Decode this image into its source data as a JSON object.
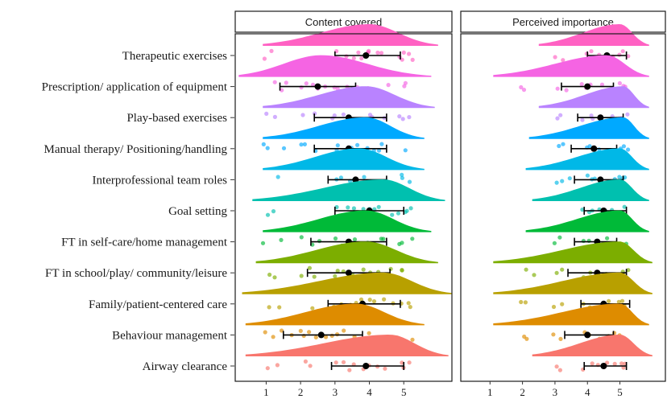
{
  "chart_data": {
    "type": "raincloud",
    "title": "",
    "xlabel": "",
    "ylabel": "",
    "xlim": [
      0.1,
      6.4
    ],
    "x_ticks": [
      1,
      2,
      3,
      4,
      5
    ],
    "grid": false,
    "legend": "none",
    "panels": [
      {
        "name": "Content covered"
      },
      {
        "name": "Perceived importance"
      }
    ],
    "categories": [
      "Therapeutic exercises",
      "Prescription/ application of equipment",
      "Play-based exercises",
      "Manual therapy/ Positioning/handling",
      "Interprofessional team roles",
      "Goal setting",
      "FT in self-care/home management",
      "FT in school/play/ community/leisure",
      "Family/patient-centered care",
      "Behaviour management",
      "Airway clearance"
    ],
    "colors": [
      "#ff61c3",
      "#f564e3",
      "#b983ff",
      "#00a9ff",
      "#00b8e7",
      "#00c0af",
      "#00ba38",
      "#7cae00",
      "#b8a000",
      "#de8c00",
      "#f8766d"
    ],
    "series": [
      {
        "name": "Content covered",
        "mean": [
          3.9,
          2.5,
          3.4,
          3.4,
          3.6,
          4.0,
          3.4,
          3.4,
          3.8,
          2.6,
          3.9
        ],
        "error_low": [
          3.0,
          1.4,
          2.4,
          2.4,
          2.8,
          3.0,
          2.3,
          2.2,
          2.8,
          1.5,
          2.9
        ],
        "error_high": [
          4.9,
          3.6,
          4.5,
          4.5,
          4.5,
          5.0,
          4.5,
          4.6,
          4.9,
          3.8,
          5.0
        ],
        "density_range": [
          [
            0.9,
            6.0
          ],
          [
            0.2,
            5.8
          ],
          [
            0.9,
            5.9
          ],
          [
            0.9,
            5.6
          ],
          [
            0.9,
            5.6
          ],
          [
            0.6,
            6.2
          ],
          [
            0.9,
            5.8
          ],
          [
            0.7,
            6.0
          ],
          [
            0.3,
            6.4
          ],
          [
            0.4,
            5.6
          ],
          [
            0.4,
            6.3
          ]
        ],
        "density_peak": [
          4.0,
          2.6,
          3.9,
          3.9,
          3.7,
          4.4,
          3.9,
          3.9,
          4.4,
          3.6,
          4.6
        ],
        "points": [
          [
            1.0,
            1.1,
            3.1,
            3.3,
            3.5,
            3.7,
            3.8,
            3.9,
            4.0,
            4.0,
            4.2,
            4.3,
            4.9,
            4.9,
            5.0,
            5.1,
            5.2
          ],
          [
            1.2,
            1.4,
            1.6,
            2.0,
            2.2,
            2.3,
            2.5,
            2.7,
            3.0,
            3.1,
            3.4,
            3.7,
            4.0,
            4.5,
            5.0,
            5.1
          ],
          [
            1.0,
            1.3,
            2.1,
            2.4,
            2.9,
            3.0,
            3.2,
            3.4,
            3.6,
            3.8,
            4.0,
            4.1,
            4.4,
            4.9,
            5.0,
            5.2
          ],
          [
            0.9,
            1.1,
            1.5,
            2.0,
            2.1,
            2.4,
            3.0,
            3.1,
            3.3,
            3.5,
            3.7,
            3.8,
            4.0,
            4.1,
            4.3,
            4.4,
            5.0
          ],
          [
            1.3,
            3.0,
            3.2,
            3.4,
            3.5,
            3.6,
            3.8,
            4.0,
            4.1,
            4.3,
            4.9,
            5.0,
            5.2
          ],
          [
            1.1,
            1.2,
            3.1,
            3.4,
            3.6,
            3.8,
            4.0,
            4.1,
            4.3,
            4.6,
            4.9,
            5.0,
            5.1,
            5.2
          ],
          [
            0.9,
            1.4,
            2.0,
            2.3,
            2.5,
            3.0,
            3.2,
            3.4,
            3.6,
            3.9,
            4.1,
            4.3,
            4.4,
            4.9,
            5.0,
            5.2
          ],
          [
            1.1,
            1.3,
            2.0,
            2.3,
            2.4,
            3.0,
            3.1,
            3.3,
            3.5,
            3.8,
            4.0,
            4.3,
            4.6,
            4.9,
            5.0
          ],
          [
            1.1,
            1.4,
            2.4,
            3.0,
            3.2,
            3.4,
            3.6,
            3.8,
            4.0,
            4.2,
            4.4,
            4.7,
            4.9,
            5.1,
            5.2
          ],
          [
            1.0,
            1.2,
            1.5,
            1.7,
            2.0,
            2.1,
            2.3,
            2.5,
            2.7,
            2.9,
            3.1,
            3.3,
            3.6,
            3.9,
            4.0,
            4.5,
            5.2
          ],
          [
            1.1,
            1.3,
            2.1,
            2.3,
            3.0,
            3.2,
            3.4,
            3.6,
            3.8,
            4.0,
            4.2,
            4.4,
            4.9,
            5.0,
            5.2
          ]
        ]
      },
      {
        "name": "Perceived importance",
        "mean": [
          4.6,
          4.0,
          4.4,
          4.2,
          4.4,
          4.5,
          4.3,
          4.3,
          4.5,
          4.0,
          4.5
        ],
        "error_low": [
          4.0,
          3.2,
          3.7,
          3.5,
          3.6,
          3.9,
          3.6,
          3.4,
          3.8,
          3.3,
          3.9
        ],
        "error_high": [
          5.2,
          4.8,
          5.1,
          4.9,
          5.1,
          5.2,
          4.9,
          5.2,
          5.3,
          4.8,
          5.2
        ],
        "density_range": [
          [
            2.5,
            5.9
          ],
          [
            1.1,
            5.9
          ],
          [
            2.5,
            5.9
          ],
          [
            2.2,
            5.9
          ],
          [
            2.1,
            5.9
          ],
          [
            2.3,
            5.9
          ],
          [
            2.1,
            5.9
          ],
          [
            1.1,
            6.0
          ],
          [
            1.1,
            6.0
          ],
          [
            1.1,
            5.9
          ],
          [
            2.3,
            6.0
          ]
        ],
        "density_peak": [
          5.0,
          4.6,
          5.1,
          5.1,
          5.0,
          5.0,
          5.0,
          5.0,
          5.0,
          5.0,
          5.0
        ],
        "points": [
          [
            3.0,
            3.2,
            4.0,
            4.1,
            4.4,
            4.6,
            4.8,
            5.0,
            5.1,
            5.2
          ],
          [
            2.0,
            2.1,
            3.1,
            3.3,
            3.8,
            4.0,
            4.1,
            4.5,
            4.8,
            5.0,
            5.1,
            5.2
          ],
          [
            3.1,
            3.2,
            3.9,
            4.1,
            4.2,
            4.6,
            4.8,
            5.0,
            5.1,
            5.2
          ],
          [
            3.1,
            3.2,
            4.0,
            4.1,
            4.2,
            4.3,
            4.8,
            5.0,
            5.1,
            5.2
          ],
          [
            3.0,
            3.2,
            3.4,
            4.0,
            4.1,
            4.2,
            4.6,
            4.8,
            5.0,
            5.1,
            5.2
          ],
          [
            3.9,
            4.0,
            4.2,
            4.4,
            4.6,
            4.8,
            5.0,
            5.1,
            5.2
          ],
          [
            3.0,
            3.2,
            3.9,
            4.1,
            4.3,
            4.6,
            4.8,
            5.0,
            5.1,
            5.2
          ],
          [
            2.1,
            2.3,
            3.0,
            3.2,
            3.9,
            4.1,
            4.6,
            4.8,
            5.0,
            5.1,
            5.2
          ],
          [
            2.0,
            2.1,
            3.0,
            3.2,
            3.9,
            4.1,
            4.6,
            4.8,
            5.0,
            5.1,
            5.2
          ],
          [
            2.0,
            2.1,
            3.0,
            3.2,
            3.9,
            4.1,
            4.4,
            4.6,
            4.8,
            5.0,
            5.1
          ],
          [
            3.0,
            3.2,
            3.9,
            4.1,
            4.3,
            4.6,
            4.8,
            5.0,
            5.1,
            5.2
          ]
        ]
      }
    ]
  }
}
